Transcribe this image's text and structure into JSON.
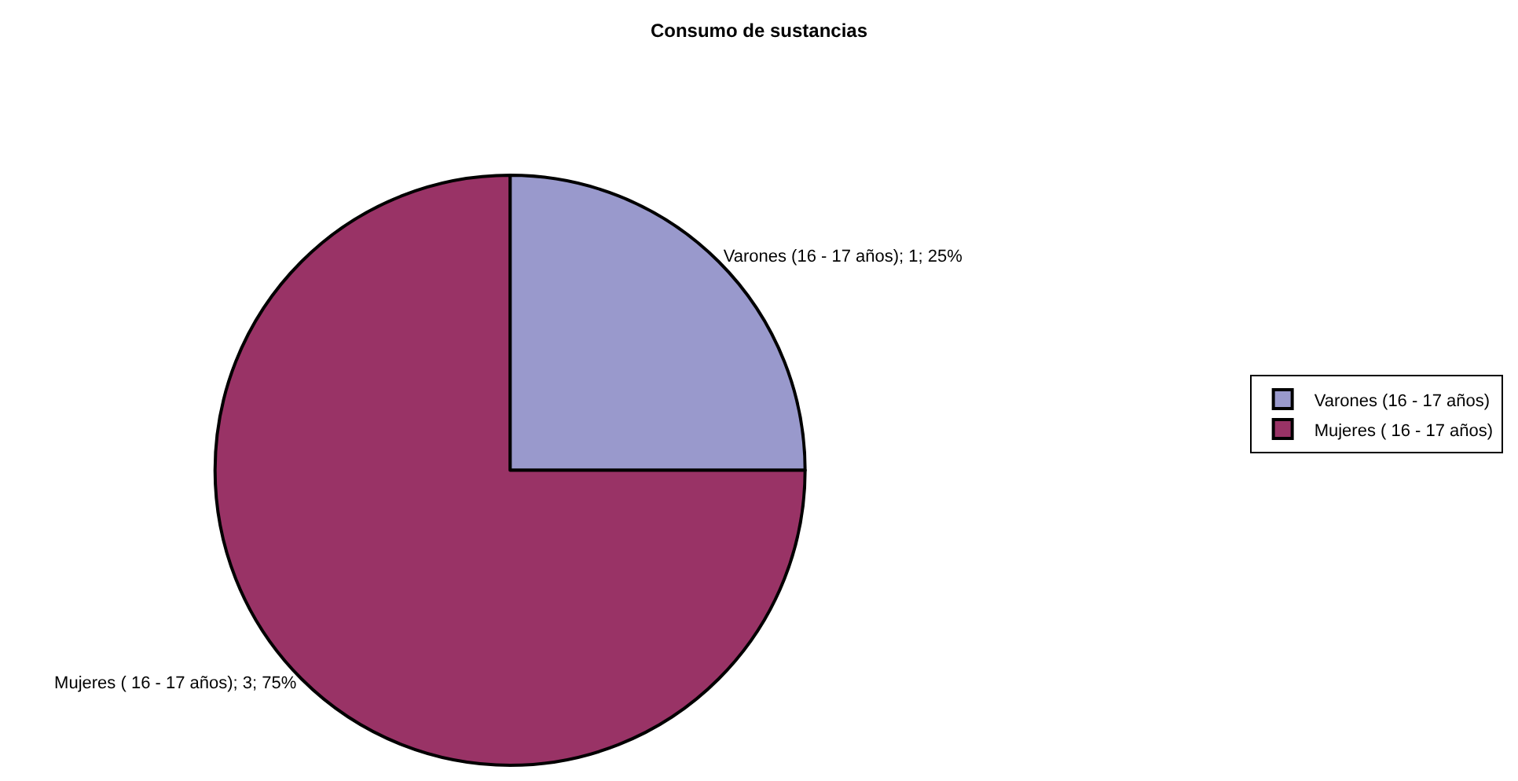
{
  "chart_data": {
    "type": "pie",
    "title": "Consumo de sustancias",
    "categories": [
      "Varones (16 - 17 años)",
      "Mujeres ( 16 - 17 años)"
    ],
    "values": [
      1,
      3
    ],
    "colors": [
      "#9999cc",
      "#993366"
    ],
    "value_labels": [
      "Varones (16 - 17 años); 1; 25%",
      "Mujeres ( 16 - 17 años); 3; 75%"
    ],
    "legend": "right"
  }
}
